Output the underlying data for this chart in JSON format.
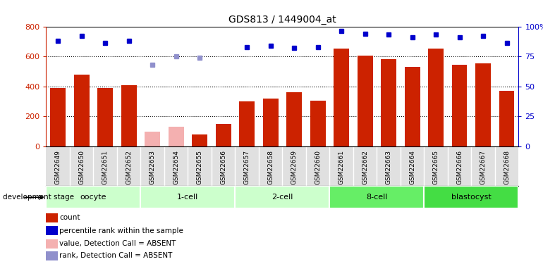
{
  "title": "GDS813 / 1449004_at",
  "samples": [
    "GSM22649",
    "GSM22650",
    "GSM22651",
    "GSM22652",
    "GSM22653",
    "GSM22654",
    "GSM22655",
    "GSM22656",
    "GSM22657",
    "GSM22658",
    "GSM22659",
    "GSM22660",
    "GSM22661",
    "GSM22662",
    "GSM22663",
    "GSM22664",
    "GSM22665",
    "GSM22666",
    "GSM22667",
    "GSM22668"
  ],
  "count_values": [
    390,
    480,
    390,
    410,
    null,
    null,
    80,
    150,
    300,
    320,
    360,
    305,
    650,
    605,
    580,
    530,
    650,
    545,
    555,
    370
  ],
  "count_absent": [
    null,
    null,
    null,
    null,
    100,
    130,
    null,
    null,
    null,
    null,
    null,
    null,
    null,
    null,
    null,
    null,
    null,
    null,
    null,
    null
  ],
  "rank_values": [
    88,
    92,
    86,
    88,
    null,
    null,
    null,
    null,
    83,
    84,
    82,
    83,
    96,
    94,
    93,
    91,
    93,
    91,
    92,
    86
  ],
  "rank_absent": [
    null,
    null,
    null,
    null,
    68,
    75,
    74,
    null,
    null,
    null,
    null,
    null,
    null,
    null,
    null,
    null,
    null,
    null,
    null,
    null
  ],
  "stages": [
    {
      "label": "oocyte",
      "start": 0,
      "end": 3,
      "color": "#ccffcc"
    },
    {
      "label": "1-cell",
      "start": 4,
      "end": 7,
      "color": "#ccffcc"
    },
    {
      "label": "2-cell",
      "start": 8,
      "end": 11,
      "color": "#ccffcc"
    },
    {
      "label": "8-cell",
      "start": 12,
      "end": 15,
      "color": "#66ee66"
    },
    {
      "label": "blastocyst",
      "start": 16,
      "end": 19,
      "color": "#44dd44"
    }
  ],
  "bar_color_present": "#cc2200",
  "bar_color_absent": "#f4b0b0",
  "rank_color_present": "#0000cc",
  "rank_color_absent": "#9090cc",
  "ylim_left": [
    0,
    800
  ],
  "ylim_right": [
    0,
    100
  ],
  "yticks_left": [
    0,
    200,
    400,
    600,
    800
  ],
  "yticks_right": [
    0,
    25,
    50,
    75,
    100
  ],
  "background_color": "#ffffff"
}
